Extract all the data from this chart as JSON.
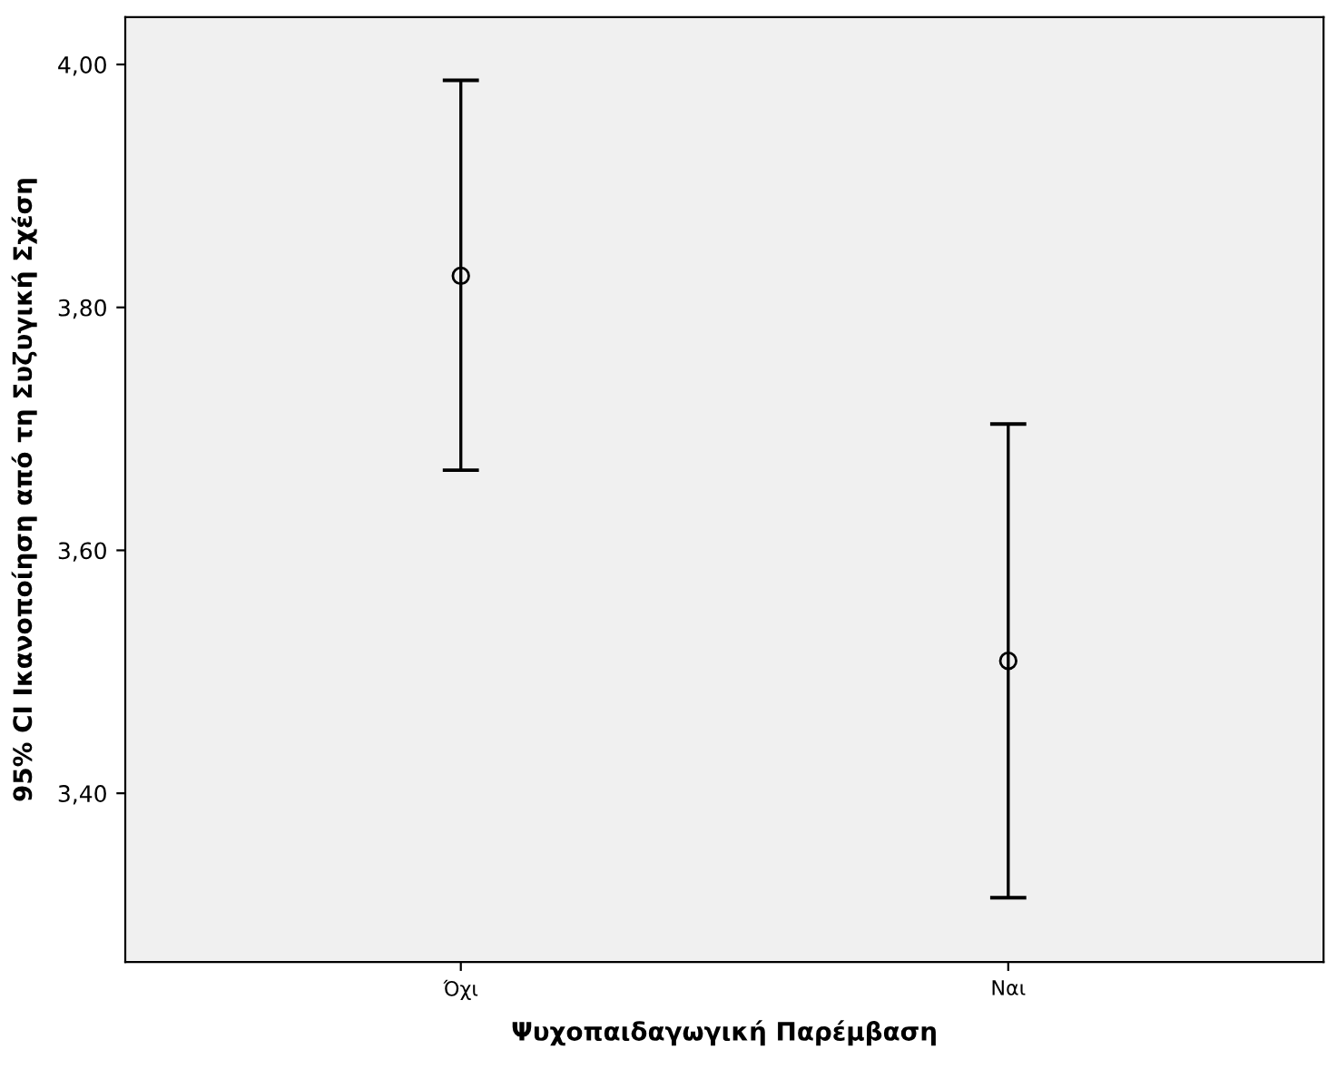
{
  "chart_data": {
    "type": "scatter",
    "xlabel": "Ψυχοπαιδαγωγική Παρέμβαση",
    "ylabel": "95% CI Ικανοποίηση από τη Συζυγική Σχέση",
    "categories": [
      "Όχι",
      "Ναι"
    ],
    "values": [
      3.826,
      3.509
    ],
    "errors": [
      [
        3.666,
        3.987
      ],
      [
        3.314,
        3.704
      ]
    ],
    "color": "#000000",
    "marker": "circle",
    "ylim": [
      3.261,
      4.039
    ],
    "yticks": [
      {
        "value": 3.4,
        "label": "3,40"
      },
      {
        "value": 3.6,
        "label": "3,60"
      },
      {
        "value": 3.8,
        "label": "3,80"
      },
      {
        "value": 4.0,
        "label": "4,00"
      }
    ],
    "grid": false,
    "legend": false
  }
}
